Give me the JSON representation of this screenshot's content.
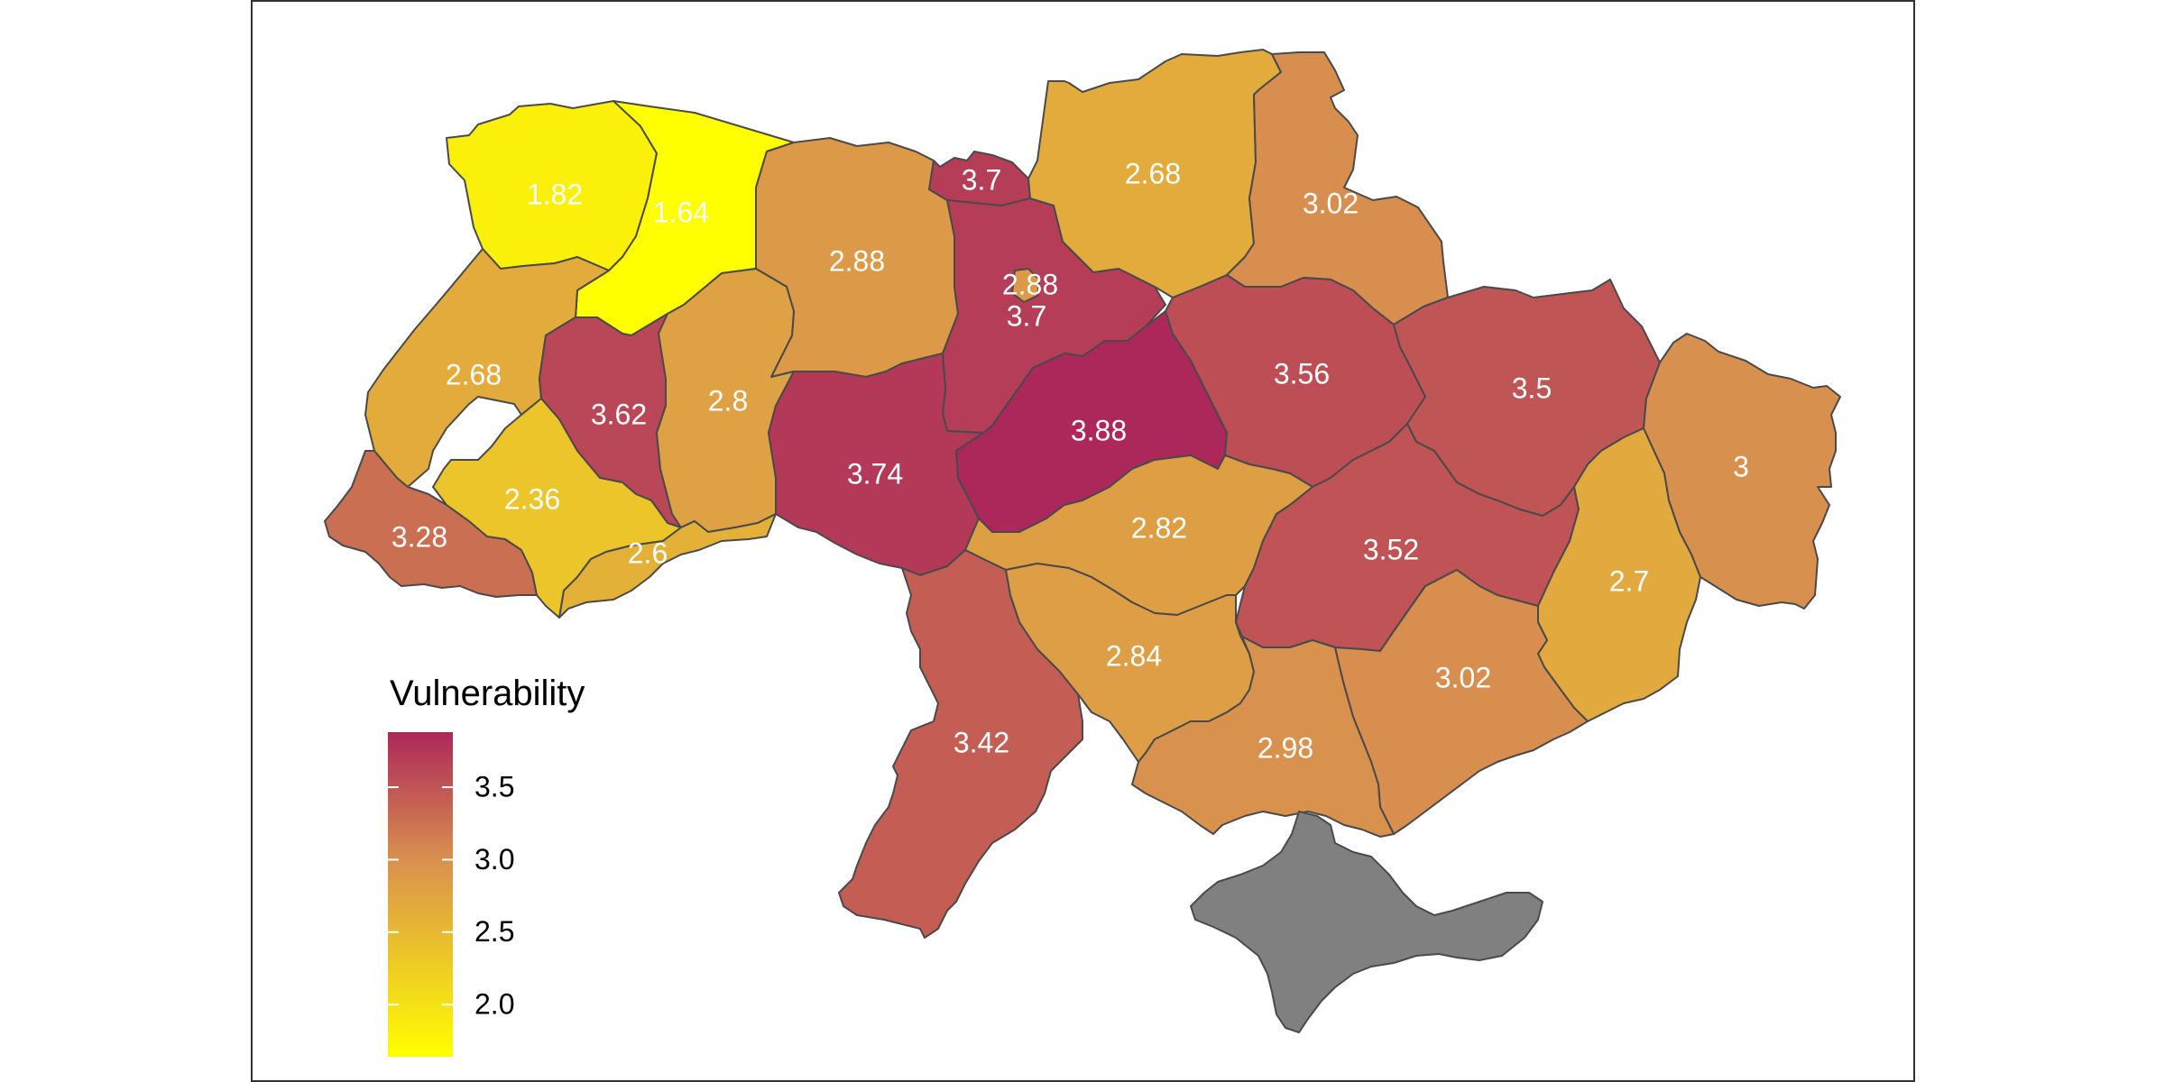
{
  "map": {
    "title": "",
    "no_data_color": "#808080",
    "border_color": "#4a4a4a",
    "label_color": "#ffffff",
    "regions": [
      {
        "id": "volyn",
        "label": "1.82",
        "value": 1.82
      },
      {
        "id": "rivne",
        "label": "1.64",
        "value": 1.64
      },
      {
        "id": "zhytomyr",
        "label": "2.88",
        "value": 2.88
      },
      {
        "id": "kyiv-city",
        "label": "2.88",
        "value": 2.88
      },
      {
        "id": "kyiv-oblast-north",
        "label": "3.7",
        "value": 3.7
      },
      {
        "id": "kyiv-oblast",
        "label": "3.7",
        "value": 3.7
      },
      {
        "id": "chernihiv",
        "label": "2.68",
        "value": 2.68
      },
      {
        "id": "sumy",
        "label": "3.02",
        "value": 3.02
      },
      {
        "id": "lviv",
        "label": "2.68",
        "value": 2.68
      },
      {
        "id": "ternopil",
        "label": "3.62",
        "value": 3.62
      },
      {
        "id": "khmelnytskyi",
        "label": "2.8",
        "value": 2.8
      },
      {
        "id": "vinnytsia",
        "label": "3.74",
        "value": 3.74
      },
      {
        "id": "cherkasy",
        "label": "3.88",
        "value": 3.88
      },
      {
        "id": "poltava",
        "label": "3.56",
        "value": 3.56
      },
      {
        "id": "kharkiv",
        "label": "3.5",
        "value": 3.5
      },
      {
        "id": "luhansk",
        "label": "3",
        "value": 3
      },
      {
        "id": "zakarpattia",
        "label": "3.28",
        "value": 3.28
      },
      {
        "id": "ivano-frankivsk",
        "label": "2.36",
        "value": 2.36
      },
      {
        "id": "chernivtsi",
        "label": "2.6",
        "value": 2.6
      },
      {
        "id": "kirovohrad",
        "label": "2.82",
        "value": 2.82
      },
      {
        "id": "dnipropetrovsk",
        "label": "3.52",
        "value": 3.52
      },
      {
        "id": "donetsk",
        "label": "2.7",
        "value": 2.7
      },
      {
        "id": "odesa",
        "label": "3.42",
        "value": 3.42
      },
      {
        "id": "mykolaiv",
        "label": "2.84",
        "value": 2.84
      },
      {
        "id": "zaporizhzhia",
        "label": "3.02",
        "value": 3.02
      },
      {
        "id": "kherson",
        "label": "2.98",
        "value": 2.98
      },
      {
        "id": "crimea",
        "label": "",
        "value": null
      }
    ]
  },
  "legend": {
    "title": "Vulnerability",
    "min": 1.64,
    "max": 3.88,
    "ticks": [
      {
        "value": 3.5,
        "label": "3.5"
      },
      {
        "value": 3.0,
        "label": "3.0"
      },
      {
        "value": 2.5,
        "label": "2.5"
      },
      {
        "value": 2.0,
        "label": "2.0"
      }
    ],
    "colors": {
      "low": "#ffff00",
      "mid": "#d9924e",
      "high": "#ad285a"
    }
  }
}
